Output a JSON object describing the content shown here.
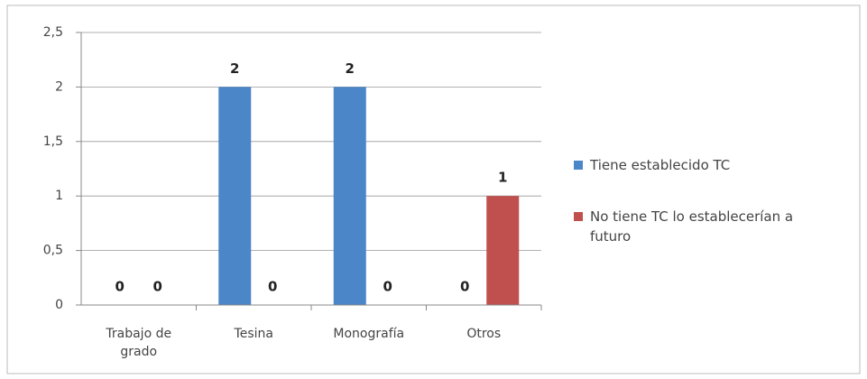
{
  "chart_data": {
    "type": "bar",
    "categories": [
      "Trabajo de grado",
      "Tesina",
      "Monografía",
      "Otros"
    ],
    "series": [
      {
        "name": "Tiene establecido TC",
        "color": "#4a86c8",
        "values": [
          0,
          2,
          2,
          0
        ]
      },
      {
        "name": "No tiene TC lo establecerían a futuro",
        "color": "#c0504d",
        "values": [
          0,
          0,
          0,
          1
        ]
      }
    ],
    "ylim": [
      0,
      2.5
    ],
    "yticks": [
      0,
      {
        "value": 0.5,
        "label": "0,5"
      },
      1,
      {
        "value": 1.5,
        "label": "1,5"
      },
      2,
      {
        "value": 2.5,
        "label": "2,5"
      }
    ],
    "grid": true,
    "legend": "right"
  }
}
